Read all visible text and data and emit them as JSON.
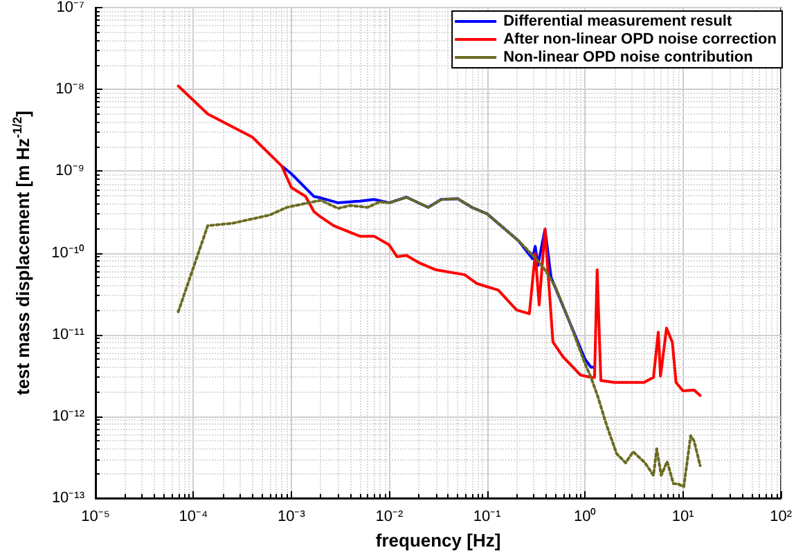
{
  "chart_data": {
    "type": "line",
    "xlabel": "frequency [Hz]",
    "ylabel": "test mass displacement [m Hz$^{-1/2}$]",
    "log": "xy",
    "grid": true,
    "legend": "top right",
    "marker": "none",
    "xlim": [
      1e-05,
      100
    ],
    "xticks": [
      {
        "value": 1e-05,
        "label": "10⁻⁵"
      },
      {
        "value": 0.0001,
        "label": "10⁻⁴"
      },
      {
        "value": 0.001,
        "label": "10⁻³"
      },
      {
        "value": 0.01,
        "label": "10⁻²"
      },
      {
        "value": 0.1,
        "label": "10⁻¹"
      },
      {
        "value": 1,
        "label": "10⁰"
      },
      {
        "value": 10,
        "label": "10¹"
      },
      {
        "value": 100,
        "label": "10²"
      }
    ],
    "ylim": [
      1e-13,
      1e-07
    ],
    "yticks": [
      {
        "value": 1e-13,
        "label": "10⁻¹³"
      },
      {
        "value": 1e-12,
        "label": "10⁻¹²"
      },
      {
        "value": 1e-11,
        "label": "10⁻¹¹"
      },
      {
        "value": 1e-10,
        "label": "10⁻¹⁰"
      },
      {
        "value": 1e-09,
        "label": "10⁻⁹"
      },
      {
        "value": 1e-08,
        "label": "10⁻⁸"
      },
      {
        "value": 1e-07,
        "label": "10⁻⁷"
      }
    ],
    "series": [
      {
        "name": "Differential measurement result",
        "color": "#0000ff",
        "line_style": "solid",
        "x": [
          0.0008,
          0.001,
          0.0017,
          0.002,
          0.003,
          0.005,
          0.007,
          0.01,
          0.015,
          0.025,
          0.034,
          0.05,
          0.07,
          0.1,
          0.21,
          0.29,
          0.31,
          0.33,
          0.39,
          0.45,
          0.7,
          1,
          1.15,
          1.25
        ],
        "values": [
          1.15e-09,
          9.3e-10,
          4.9e-10,
          4.7e-10,
          4.1e-10,
          4.3e-10,
          4.5e-10,
          4.1e-10,
          4.8e-10,
          3.6e-10,
          4.5e-10,
          4.6e-10,
          3.6e-10,
          3e-10,
          1.4e-10,
          8.5e-11,
          1.2e-10,
          7e-11,
          1.95e-10,
          5e-11,
          1.4e-11,
          5e-12,
          4e-12,
          4e-12
        ]
      },
      {
        "name": "After non-linear OPD noise correction",
        "color": "#ff0000",
        "line_style": "solid",
        "x": [
          7e-05,
          0.00014,
          0.0004,
          0.0008,
          0.001,
          0.0014,
          0.0017,
          0.002,
          0.0027,
          0.005,
          0.007,
          0.01,
          0.012,
          0.015,
          0.02,
          0.03,
          0.059,
          0.079,
          0.13,
          0.2,
          0.27,
          0.31,
          0.34,
          0.39,
          0.47,
          0.6,
          0.9,
          1.15,
          1.25,
          1.33,
          1.45,
          2,
          4,
          5,
          5.6,
          5.9,
          6.8,
          7.8,
          8.5,
          10,
          13,
          15
        ],
        "values": [
          1.1e-08,
          5e-09,
          2.6e-09,
          1.15e-09,
          6.3e-10,
          4.9e-10,
          3.2e-10,
          2.75e-10,
          2.15e-10,
          1.6e-10,
          1.6e-10,
          1.25e-10,
          9e-11,
          9.3e-11,
          7.6e-11,
          6.2e-11,
          5.4e-11,
          4.2e-11,
          3.5e-11,
          2e-11,
          1.8e-11,
          9.8e-11,
          2.3e-11,
          1.95e-10,
          8.1e-12,
          5.3e-12,
          3.2e-12,
          3e-12,
          3e-12,
          6.2e-11,
          2.75e-12,
          2.6e-12,
          2.6e-12,
          3e-12,
          1.07e-11,
          3.1e-12,
          1.2e-11,
          8e-12,
          2.6e-12,
          2.05e-12,
          2.1e-12,
          1.8e-12
        ]
      },
      {
        "name": "Non-linear OPD noise contribution",
        "color": "#6b6b22",
        "line_style": "dotted",
        "x": [
          7e-05,
          0.00014,
          0.00025,
          0.0006,
          0.0009,
          0.0015,
          0.002,
          0.003,
          0.004,
          0.006,
          0.008,
          0.01,
          0.015,
          0.025,
          0.034,
          0.05,
          0.07,
          0.1,
          0.21,
          0.31,
          0.39,
          0.5,
          0.7,
          1,
          1.15,
          1.35,
          1.65,
          2.1,
          2.6,
          3.1,
          4.1,
          5,
          5.4,
          6,
          6.9,
          8,
          8.8,
          10.2,
          12,
          13,
          15
        ],
        "values": [
          1.9e-11,
          2.15e-10,
          2.3e-10,
          2.9e-10,
          3.6e-10,
          4.1e-10,
          4.4e-10,
          3.5e-10,
          3.8e-10,
          3.6e-10,
          4.2e-10,
          4.1e-10,
          4.8e-10,
          3.6e-10,
          4.5e-10,
          4.6e-10,
          3.6e-10,
          3e-10,
          1.4e-10,
          8.7e-11,
          6.2e-11,
          3.8e-11,
          1.4e-11,
          4.4e-12,
          3e-12,
          1.75e-12,
          8e-13,
          3.5e-13,
          2.7e-13,
          3.7e-13,
          2.7e-13,
          1.9e-13,
          4e-13,
          1.9e-13,
          2.8e-13,
          1.5e-13,
          1.5e-13,
          1.38e-13,
          5.8e-13,
          5e-13,
          2.5e-13
        ]
      }
    ]
  }
}
